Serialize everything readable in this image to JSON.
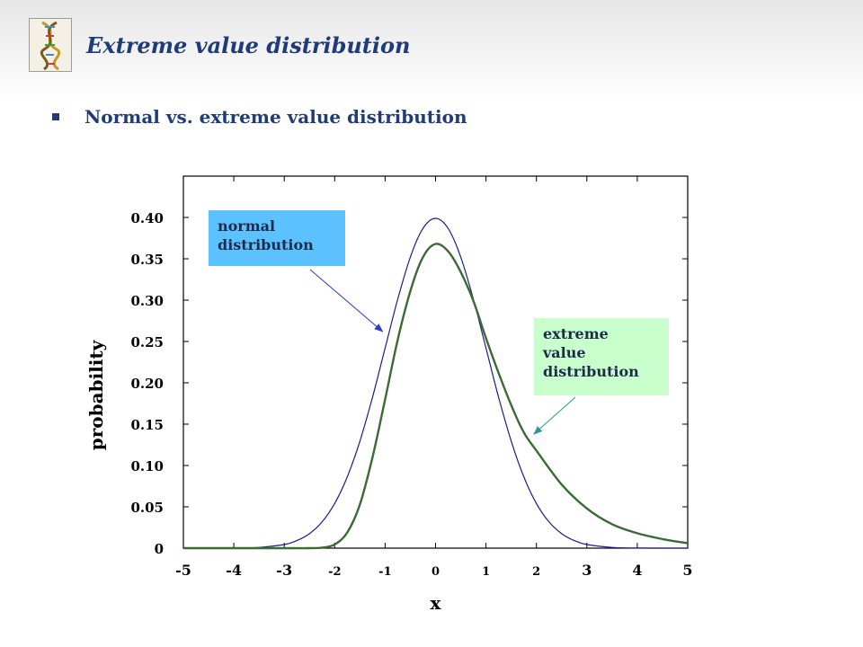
{
  "slide": {
    "title": "Extreme value distribution",
    "bullet": "Normal vs. extreme value distribution"
  },
  "chart_data": {
    "type": "line",
    "xlabel": "x",
    "ylabel": "probability",
    "xlim": [
      -5,
      5
    ],
    "ylim": [
      0,
      0.45
    ],
    "x_ticks": [
      "-5",
      "-4",
      "-3",
      "-2",
      "-1",
      "0",
      "1",
      "2",
      "3",
      "4",
      "5"
    ],
    "y_ticks": [
      "0",
      "0.05",
      "0.10",
      "0.15",
      "0.20",
      "0.25",
      "0.30",
      "0.35",
      "0.40"
    ],
    "y_tick_values": [
      0,
      0.05,
      0.1,
      0.15,
      0.2,
      0.25,
      0.3,
      0.35,
      0.4
    ],
    "grid": false,
    "series": [
      {
        "name": "normal distribution",
        "color": "#1c1c8c",
        "x": [
          -5,
          -4.5,
          -4,
          -3.5,
          -3,
          -2.75,
          -2.5,
          -2.25,
          -2,
          -1.75,
          -1.5,
          -1.25,
          -1,
          -0.75,
          -0.5,
          -0.25,
          0,
          0.25,
          0.5,
          0.75,
          1,
          1.25,
          1.5,
          1.75,
          2,
          2.25,
          2.5,
          2.75,
          3,
          3.5,
          4,
          4.5,
          5
        ],
        "y": [
          0.0,
          0.0,
          0.0001,
          0.0009,
          0.0044,
          0.0091,
          0.0175,
          0.0317,
          0.054,
          0.0863,
          0.1295,
          0.1826,
          0.242,
          0.3011,
          0.3521,
          0.3867,
          0.3989,
          0.3867,
          0.3521,
          0.3011,
          0.242,
          0.1826,
          0.1295,
          0.0863,
          0.054,
          0.0317,
          0.0175,
          0.0091,
          0.0044,
          0.0009,
          0.0001,
          0.0,
          0.0
        ]
      },
      {
        "name": "extreme value distribution",
        "color": "#3a6b35",
        "x": [
          -5,
          -3,
          -2.5,
          -2.25,
          -2,
          -1.75,
          -1.5,
          -1.25,
          -1,
          -0.75,
          -0.5,
          -0.25,
          0,
          0.25,
          0.5,
          0.75,
          1,
          1.25,
          1.5,
          1.75,
          2,
          2.5,
          3,
          3.5,
          4,
          4.5,
          5
        ],
        "y": [
          0.0,
          0.0,
          0.0,
          0.0006,
          0.0045,
          0.019,
          0.053,
          0.11,
          0.18,
          0.252,
          0.311,
          0.352,
          0.3679,
          0.359,
          0.334,
          0.299,
          0.254,
          0.212,
          0.173,
          0.14,
          0.118,
          0.077,
          0.048,
          0.029,
          0.018,
          0.011,
          0.006
        ]
      }
    ],
    "annotations": [
      {
        "text_lines": [
          "normal",
          "distribution"
        ],
        "fill": "#5bc2ff",
        "points_to": [
          -1.05,
          0.262
        ],
        "series": "normal distribution"
      },
      {
        "text_lines": [
          "extreme",
          "value",
          "distribution"
        ],
        "fill": "#c8ffcd",
        "points_to": [
          1.95,
          0.138
        ],
        "series": "extreme value distribution"
      }
    ]
  }
}
